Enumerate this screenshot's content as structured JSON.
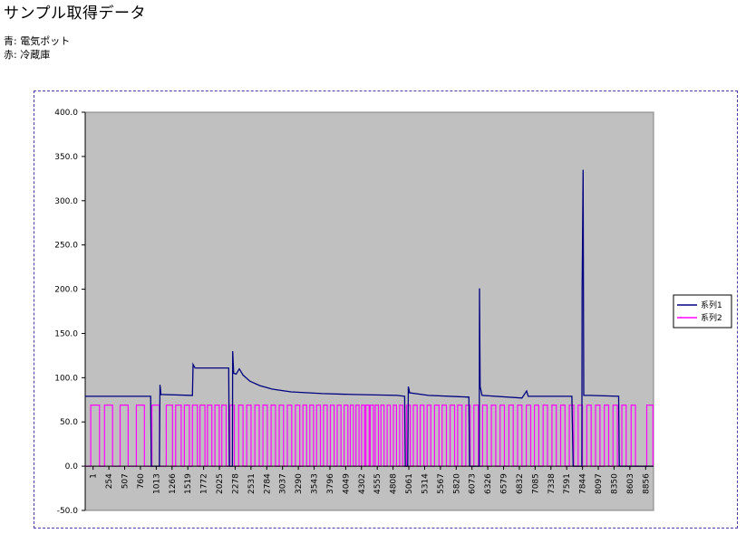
{
  "page": {
    "title": "サンプル取得データ",
    "notes": [
      "青: 電気ポット",
      "赤: 冷蔵庫"
    ]
  },
  "colors": {
    "plot_background": "#c0c0c0",
    "series1": "#000080",
    "series2": "#ff00ff",
    "frame_border": "#4b3aa6"
  },
  "chart_data": {
    "type": "line",
    "title": "",
    "xlabel": "",
    "ylabel": "",
    "ylim": [
      -50,
      400
    ],
    "y_ticks": [
      "-50.0",
      "0.0",
      "50.0",
      "100.0",
      "150.0",
      "200.0",
      "250.0",
      "300.0",
      "350.0",
      "400.0"
    ],
    "x_range": [
      1,
      9109
    ],
    "x_tick_labels": [
      "1",
      "254",
      "507",
      "760",
      "1013",
      "1266",
      "1519",
      "1772",
      "2025",
      "2278",
      "2531",
      "2784",
      "3037",
      "3290",
      "3543",
      "3796",
      "4049",
      "4302",
      "4555",
      "4808",
      "5061",
      "5314",
      "5567",
      "5820",
      "6073",
      "6326",
      "6579",
      "6832",
      "7085",
      "7338",
      "7591",
      "7844",
      "8097",
      "8350",
      "8603",
      "8856"
    ],
    "grid": false,
    "legend_position": "right",
    "series": [
      {
        "name": "系列1",
        "points": [
          [
            1,
            79
          ],
          [
            1050,
            79
          ],
          [
            1060,
            0
          ],
          [
            1190,
            0
          ],
          [
            1200,
            92
          ],
          [
            1215,
            81
          ],
          [
            1720,
            80
          ],
          [
            1730,
            115
          ],
          [
            1760,
            111
          ],
          [
            2300,
            111
          ],
          [
            2310,
            0
          ],
          [
            2360,
            0
          ],
          [
            2365,
            130
          ],
          [
            2380,
            105
          ],
          [
            2420,
            104
          ],
          [
            2470,
            110
          ],
          [
            2530,
            103
          ],
          [
            2640,
            96
          ],
          [
            2800,
            91
          ],
          [
            3000,
            87
          ],
          [
            3300,
            84
          ],
          [
            3800,
            82
          ],
          [
            4300,
            81
          ],
          [
            5000,
            80
          ],
          [
            5120,
            79
          ],
          [
            5130,
            0
          ],
          [
            5170,
            0
          ],
          [
            5180,
            90
          ],
          [
            5200,
            83
          ],
          [
            5500,
            80
          ],
          [
            6150,
            78
          ],
          [
            6160,
            0
          ],
          [
            6315,
            0
          ],
          [
            6320,
            201
          ],
          [
            6330,
            90
          ],
          [
            6360,
            80
          ],
          [
            7000,
            77
          ],
          [
            7075,
            85
          ],
          [
            7100,
            79
          ],
          [
            7800,
            79
          ],
          [
            7820,
            0
          ],
          [
            7960,
            0
          ],
          [
            7965,
            197
          ],
          [
            7980,
            335
          ],
          [
            7990,
            80
          ],
          [
            8000,
            80
          ],
          [
            8080,
            80
          ],
          [
            8550,
            79
          ],
          [
            8560,
            0
          ],
          [
            9100,
            0
          ]
        ]
      },
      {
        "name": "系列2",
        "x_start": 1,
        "x_end": 9109,
        "on_level": 69,
        "off_level": 0,
        "pulses": [
          [
            90,
            230
          ],
          [
            310,
            440
          ],
          [
            560,
            690
          ],
          [
            820,
            950
          ],
          [
            1070,
            1190
          ],
          [
            1300,
            1400
          ],
          [
            1450,
            1540
          ],
          [
            1590,
            1670
          ],
          [
            1720,
            1800
          ],
          [
            1840,
            1920
          ],
          [
            1960,
            2030
          ],
          [
            2080,
            2150
          ],
          [
            2190,
            2260
          ],
          [
            2320,
            2390
          ],
          [
            2460,
            2530
          ],
          [
            2590,
            2660
          ],
          [
            2720,
            2790
          ],
          [
            2850,
            2920
          ],
          [
            2980,
            3050
          ],
          [
            3110,
            3180
          ],
          [
            3240,
            3310
          ],
          [
            3370,
            3440
          ],
          [
            3490,
            3550
          ],
          [
            3600,
            3660
          ],
          [
            3710,
            3770
          ],
          [
            3820,
            3880
          ],
          [
            3930,
            3990
          ],
          [
            4040,
            4100
          ],
          [
            4150,
            4210
          ],
          [
            4250,
            4300
          ],
          [
            4340,
            4390
          ],
          [
            4430,
            4480
          ],
          [
            4500,
            4550
          ],
          [
            4570,
            4620
          ],
          [
            4650,
            4700
          ],
          [
            4740,
            4790
          ],
          [
            4840,
            4890
          ],
          [
            4940,
            4990
          ],
          [
            5040,
            5090
          ],
          [
            5150,
            5210
          ],
          [
            5260,
            5320
          ],
          [
            5370,
            5430
          ],
          [
            5480,
            5540
          ],
          [
            5600,
            5670
          ],
          [
            5720,
            5790
          ],
          [
            5850,
            5920
          ],
          [
            5970,
            6040
          ],
          [
            6100,
            6170
          ],
          [
            6230,
            6300
          ],
          [
            6370,
            6440
          ],
          [
            6510,
            6580
          ],
          [
            6650,
            6720
          ],
          [
            6790,
            6860
          ],
          [
            6930,
            7000
          ],
          [
            7070,
            7140
          ],
          [
            7200,
            7270
          ],
          [
            7340,
            7410
          ],
          [
            7480,
            7550
          ],
          [
            7620,
            7690
          ],
          [
            7760,
            7830
          ],
          [
            7900,
            7970
          ],
          [
            8040,
            8110
          ],
          [
            8180,
            8250
          ],
          [
            8320,
            8390
          ],
          [
            8460,
            8530
          ],
          [
            8600,
            8670
          ],
          [
            8750,
            8820
          ],
          [
            9000,
            9100
          ]
        ]
      }
    ]
  }
}
